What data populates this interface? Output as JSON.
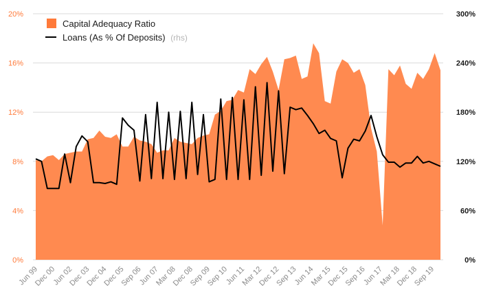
{
  "colors": {
    "area": "#ff8a50",
    "area_legend": "#ff7a3a",
    "line": "#000000",
    "grid": "#d9d9d9",
    "left_axis_text": "#ff7a3a",
    "right_axis_text": "#1a1a1a",
    "x_axis_text": "#8a8a8a"
  },
  "chart_data": {
    "type": "area",
    "legend_position": "top-left",
    "grid": true,
    "legend": {
      "area_label": "Capital Adequacy Ratio",
      "line_label": "Loans (As % Of Deposits)",
      "line_suffix": "(rhs)"
    },
    "y_left": {
      "ticks": [
        "0%",
        "4%",
        "8%",
        "12%",
        "16%",
        "20%"
      ],
      "lim": [
        0,
        20
      ]
    },
    "y_right": {
      "ticks": [
        "0%",
        "60%",
        "120%",
        "180%",
        "240%",
        "300%"
      ],
      "lim": [
        0,
        300
      ]
    },
    "x_tick_labels": [
      "Jun 99",
      "Dec 00",
      "Jun 02",
      "Dec 03",
      "Dec 04",
      "Dec 05",
      "Sep 06",
      "Jun 07",
      "Mar 08",
      "Dec 08",
      "Sep 09",
      "Sep 10",
      "Jun 11",
      "Mar 12",
      "Dec 12",
      "Sep 13",
      "Jun 14",
      "Mar 15",
      "Dec 15",
      "Sep 16",
      "Jun 17",
      "Mar 18",
      "Dec 18",
      "Sep 19"
    ],
    "series": [
      {
        "name": "Capital Adequacy Ratio",
        "kind": "area",
        "axis": "left",
        "values": [
          8.1,
          8.0,
          8.4,
          8.5,
          8.1,
          8.6,
          8.7,
          8.8,
          8.8,
          9.8,
          9.9,
          10.5,
          10.0,
          9.9,
          10.2,
          9.2,
          9.2,
          10.0,
          9.7,
          9.6,
          9.4,
          8.7,
          8.9,
          8.9,
          9.9,
          9.6,
          9.5,
          9.4,
          9.9,
          10.1,
          10.2,
          11.8,
          12.1,
          12.9,
          13.0,
          13.8,
          13.6,
          15.5,
          15.1,
          15.9,
          16.5,
          15.3,
          13.8,
          16.3,
          16.4,
          16.6,
          14.7,
          14.9,
          17.6,
          16.8,
          12.9,
          12.7,
          15.3,
          16.3,
          16.0,
          15.2,
          15.5,
          14.2,
          10.7,
          8.8,
          2.8,
          15.5,
          15.0,
          15.8,
          14.3,
          13.9,
          15.2,
          14.7,
          15.5,
          16.8,
          15.4
        ]
      },
      {
        "name": "Loans (As % Of Deposits)",
        "kind": "line",
        "axis": "right",
        "values": [
          123,
          120,
          87,
          87,
          87,
          129,
          94,
          138,
          151,
          144,
          94,
          94,
          93,
          95,
          92,
          173,
          164,
          158,
          96,
          177,
          99,
          192,
          99,
          180,
          98,
          181,
          99,
          192,
          104,
          177,
          95,
          98,
          196,
          98,
          198,
          98,
          195,
          98,
          211,
          103,
          216,
          108,
          206,
          105,
          186,
          183,
          185,
          176,
          166,
          154,
          158,
          148,
          145,
          100,
          136,
          147,
          145,
          157,
          176,
          150,
          128,
          119,
          119,
          113,
          118,
          118,
          126,
          118,
          120,
          117,
          114
        ]
      }
    ]
  }
}
